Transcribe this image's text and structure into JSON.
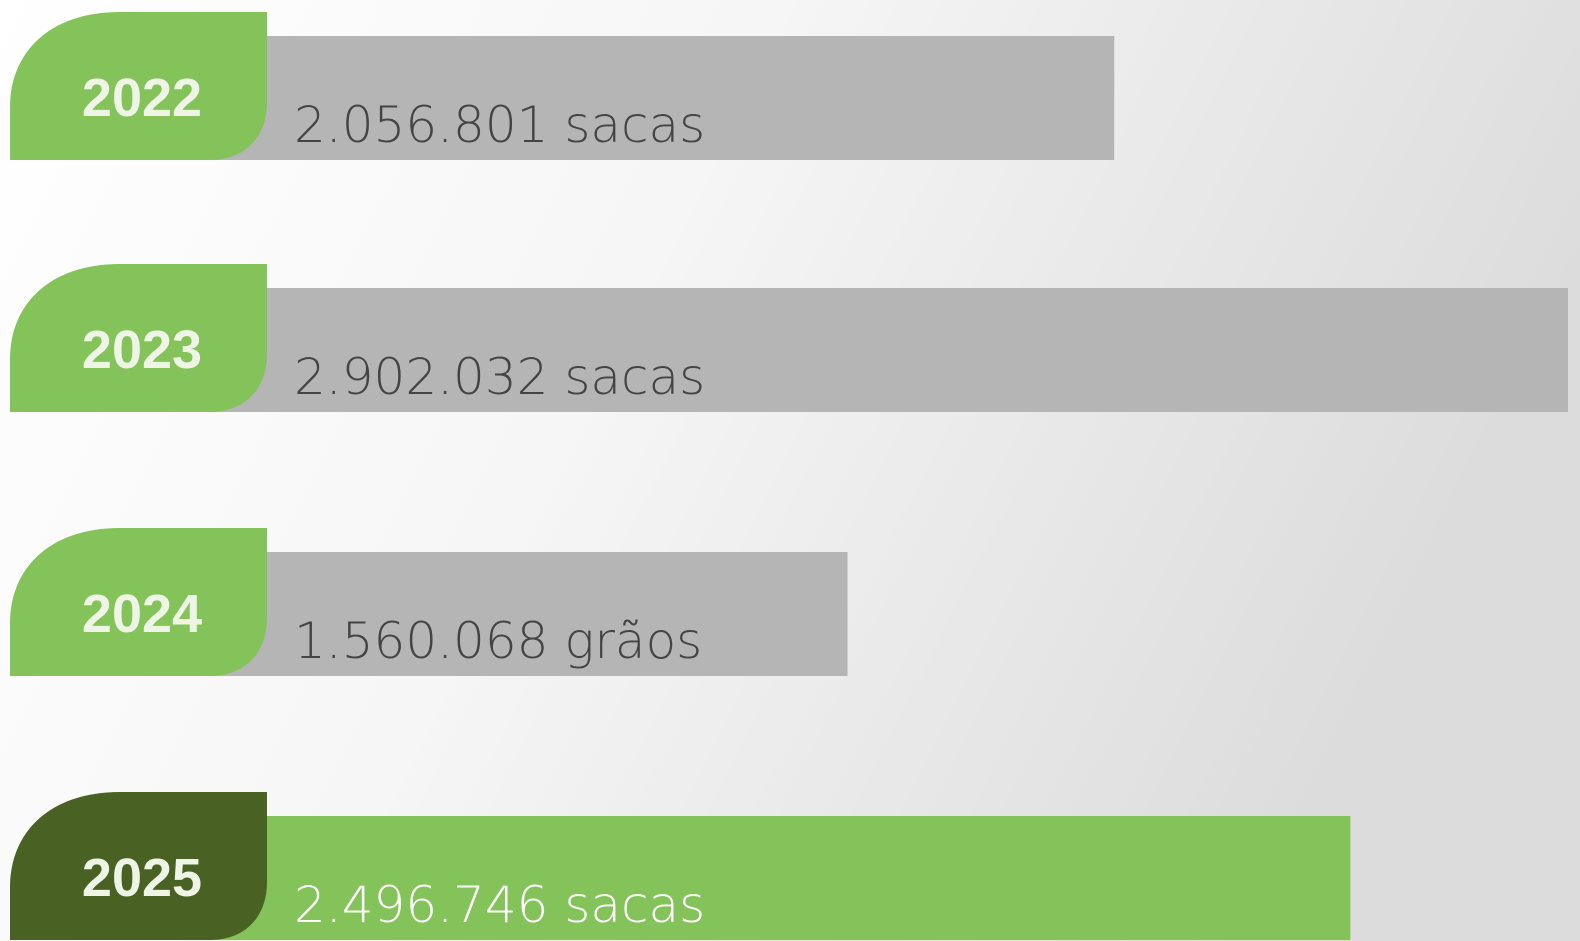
{
  "chart_data": {
    "type": "bar",
    "orientation": "horizontal",
    "categories": [
      "2022",
      "2023",
      "2024",
      "2025"
    ],
    "values": [
      2056801,
      2902032,
      1560068,
      2496746
    ],
    "value_labels": [
      "2.056.801 sacas",
      "2.902.032 sacas",
      "1.560.068 grãos",
      "2.496.746 sacas"
    ],
    "colors": [
      "#b5b5b5",
      "#b5b5b5",
      "#b5b5b5",
      "#84c35a"
    ],
    "tab_colors": [
      "#84c35a",
      "#84c35a",
      "#84c35a",
      "#4a6124"
    ],
    "label_colors": [
      "#444444",
      "#444444",
      "#444444",
      "#ffffff"
    ]
  }
}
